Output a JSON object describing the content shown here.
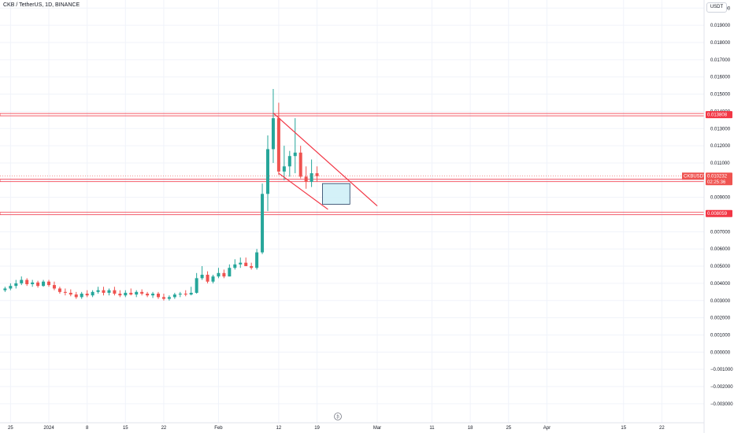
{
  "header": {
    "title": "CKB / TetherUS, 1D, BINANCE",
    "unit_button": "USDT"
  },
  "colors": {
    "up": "#26a69a",
    "down": "#ef5350",
    "drawing_red": "#f23645",
    "box_fill": "#cdeef7",
    "box_border": "#1e3a5f",
    "grid": "#f0f3fa",
    "axis_text": "#131722"
  },
  "chart_data": {
    "type": "candlestick",
    "title": "CKB / TetherUS, 1D, BINANCE",
    "y_axis": {
      "ticks": [
        "0.020000",
        "0.019000",
        "0.018000",
        "0.017000",
        "0.016000",
        "0.015000",
        "0.014000",
        "0.013000",
        "0.012000",
        "0.011000",
        "0.010000",
        "0.009000",
        "0.008000",
        "0.007000",
        "0.006000",
        "0.005000",
        "0.004000",
        "0.003000",
        "0.002000",
        "0.001000",
        "0.000000",
        "−0.001000",
        "−0.002000",
        "−0.003000"
      ],
      "tick_values": [
        0.02,
        0.019,
        0.018,
        0.017,
        0.016,
        0.015,
        0.014,
        0.013,
        0.012,
        0.011,
        0.01,
        0.009,
        0.008,
        0.007,
        0.006,
        0.005,
        0.004,
        0.003,
        0.002,
        0.001,
        0.0,
        -0.001,
        -0.002,
        -0.003
      ],
      "range": [
        -0.003,
        0.0205
      ],
      "grid": true
    },
    "x_axis": {
      "ticks": [
        "25",
        "2024",
        "8",
        "15",
        "22",
        "Feb",
        "12",
        "19",
        "Mar",
        "11",
        "18",
        "25",
        "Apr",
        "15",
        "22"
      ],
      "tick_days": [
        -7,
        0,
        7,
        14,
        21,
        31,
        42,
        49,
        60,
        70,
        77,
        84,
        91,
        105,
        112
      ]
    },
    "candles": [
      {
        "day": -8,
        "o": 0.0036,
        "h": 0.0038,
        "l": 0.0035,
        "c": 0.0037
      },
      {
        "day": -7,
        "o": 0.0037,
        "h": 0.004,
        "l": 0.0036,
        "c": 0.00385
      },
      {
        "day": -6,
        "o": 0.00385,
        "h": 0.0042,
        "l": 0.0037,
        "c": 0.004
      },
      {
        "day": -5,
        "o": 0.004,
        "h": 0.0044,
        "l": 0.0039,
        "c": 0.0042
      },
      {
        "day": -4,
        "o": 0.0042,
        "h": 0.0043,
        "l": 0.00385,
        "c": 0.00395
      },
      {
        "day": -3,
        "o": 0.00395,
        "h": 0.0042,
        "l": 0.0038,
        "c": 0.00405
      },
      {
        "day": -2,
        "o": 0.00405,
        "h": 0.00415,
        "l": 0.00375,
        "c": 0.00385
      },
      {
        "day": -1,
        "o": 0.00385,
        "h": 0.0042,
        "l": 0.0038,
        "c": 0.0041
      },
      {
        "day": 0,
        "o": 0.0041,
        "h": 0.0042,
        "l": 0.0038,
        "c": 0.0039
      },
      {
        "day": 1,
        "o": 0.0039,
        "h": 0.0041,
        "l": 0.0036,
        "c": 0.0037
      },
      {
        "day": 2,
        "o": 0.0037,
        "h": 0.0038,
        "l": 0.0034,
        "c": 0.0035
      },
      {
        "day": 3,
        "o": 0.0035,
        "h": 0.0037,
        "l": 0.0033,
        "c": 0.00345
      },
      {
        "day": 4,
        "o": 0.00345,
        "h": 0.00365,
        "l": 0.00325,
        "c": 0.00335
      },
      {
        "day": 5,
        "o": 0.00335,
        "h": 0.0035,
        "l": 0.0031,
        "c": 0.0032
      },
      {
        "day": 6,
        "o": 0.0032,
        "h": 0.0035,
        "l": 0.0031,
        "c": 0.0034
      },
      {
        "day": 7,
        "o": 0.0034,
        "h": 0.0036,
        "l": 0.0032,
        "c": 0.0033
      },
      {
        "day": 8,
        "o": 0.0033,
        "h": 0.0036,
        "l": 0.0032,
        "c": 0.0035
      },
      {
        "day": 9,
        "o": 0.0035,
        "h": 0.0038,
        "l": 0.0034,
        "c": 0.0036
      },
      {
        "day": 10,
        "o": 0.0036,
        "h": 0.0038,
        "l": 0.0033,
        "c": 0.00345
      },
      {
        "day": 11,
        "o": 0.00345,
        "h": 0.0037,
        "l": 0.0033,
        "c": 0.0036
      },
      {
        "day": 12,
        "o": 0.0036,
        "h": 0.0038,
        "l": 0.0033,
        "c": 0.0034
      },
      {
        "day": 13,
        "o": 0.0034,
        "h": 0.0036,
        "l": 0.0032,
        "c": 0.0033
      },
      {
        "day": 14,
        "o": 0.0033,
        "h": 0.0036,
        "l": 0.0032,
        "c": 0.00345
      },
      {
        "day": 15,
        "o": 0.00345,
        "h": 0.0037,
        "l": 0.0033,
        "c": 0.00335
      },
      {
        "day": 16,
        "o": 0.00335,
        "h": 0.0036,
        "l": 0.0032,
        "c": 0.0035
      },
      {
        "day": 17,
        "o": 0.0035,
        "h": 0.00365,
        "l": 0.0033,
        "c": 0.0034
      },
      {
        "day": 18,
        "o": 0.0034,
        "h": 0.0035,
        "l": 0.0032,
        "c": 0.0033
      },
      {
        "day": 19,
        "o": 0.0033,
        "h": 0.0035,
        "l": 0.00315,
        "c": 0.0034
      },
      {
        "day": 20,
        "o": 0.0034,
        "h": 0.0035,
        "l": 0.0031,
        "c": 0.0032
      },
      {
        "day": 21,
        "o": 0.0032,
        "h": 0.0034,
        "l": 0.003,
        "c": 0.0031
      },
      {
        "day": 22,
        "o": 0.0031,
        "h": 0.0033,
        "l": 0.003,
        "c": 0.0032
      },
      {
        "day": 23,
        "o": 0.0032,
        "h": 0.00345,
        "l": 0.0031,
        "c": 0.00335
      },
      {
        "day": 24,
        "o": 0.00335,
        "h": 0.0035,
        "l": 0.0032,
        "c": 0.0034
      },
      {
        "day": 25,
        "o": 0.0034,
        "h": 0.0036,
        "l": 0.00325,
        "c": 0.00335
      },
      {
        "day": 26,
        "o": 0.00335,
        "h": 0.0038,
        "l": 0.0033,
        "c": 0.00345
      },
      {
        "day": 27,
        "o": 0.00345,
        "h": 0.0046,
        "l": 0.0034,
        "c": 0.0043
      },
      {
        "day": 28,
        "o": 0.0043,
        "h": 0.005,
        "l": 0.0042,
        "c": 0.0045
      },
      {
        "day": 29,
        "o": 0.0045,
        "h": 0.0047,
        "l": 0.004,
        "c": 0.0041
      },
      {
        "day": 30,
        "o": 0.0041,
        "h": 0.0045,
        "l": 0.004,
        "c": 0.0044
      },
      {
        "day": 31,
        "o": 0.0044,
        "h": 0.0049,
        "l": 0.0043,
        "c": 0.0046
      },
      {
        "day": 32,
        "o": 0.0046,
        "h": 0.0048,
        "l": 0.0043,
        "c": 0.0044
      },
      {
        "day": 33,
        "o": 0.0044,
        "h": 0.0051,
        "l": 0.0044,
        "c": 0.0049
      },
      {
        "day": 34,
        "o": 0.0049,
        "h": 0.0054,
        "l": 0.0048,
        "c": 0.0051
      },
      {
        "day": 35,
        "o": 0.0051,
        "h": 0.0055,
        "l": 0.0049,
        "c": 0.0052
      },
      {
        "day": 36,
        "o": 0.0052,
        "h": 0.0055,
        "l": 0.005,
        "c": 0.005
      },
      {
        "day": 37,
        "o": 0.005,
        "h": 0.0052,
        "l": 0.0048,
        "c": 0.0049
      },
      {
        "day": 38,
        "o": 0.0049,
        "h": 0.006,
        "l": 0.0048,
        "c": 0.0058
      },
      {
        "day": 39,
        "o": 0.0058,
        "h": 0.0098,
        "l": 0.0057,
        "c": 0.0092
      },
      {
        "day": 40,
        "o": 0.0092,
        "h": 0.0126,
        "l": 0.0082,
        "c": 0.0118
      },
      {
        "day": 41,
        "o": 0.0118,
        "h": 0.0153,
        "l": 0.011,
        "c": 0.0136
      },
      {
        "day": 42,
        "o": 0.0136,
        "h": 0.0145,
        "l": 0.0103,
        "c": 0.0105
      },
      {
        "day": 43,
        "o": 0.0105,
        "h": 0.012,
        "l": 0.01,
        "c": 0.0108
      },
      {
        "day": 44,
        "o": 0.0108,
        "h": 0.0117,
        "l": 0.0102,
        "c": 0.0114
      },
      {
        "day": 45,
        "o": 0.0114,
        "h": 0.0136,
        "l": 0.0104,
        "c": 0.0116
      },
      {
        "day": 46,
        "o": 0.0116,
        "h": 0.012,
        "l": 0.0101,
        "c": 0.0102
      },
      {
        "day": 47,
        "o": 0.0102,
        "h": 0.0108,
        "l": 0.0095,
        "c": 0.0099
      },
      {
        "day": 48,
        "o": 0.0099,
        "h": 0.0112,
        "l": 0.0096,
        "c": 0.0104
      },
      {
        "day": 49,
        "o": 0.0104,
        "h": 0.0108,
        "l": 0.0099,
        "c": 0.01023
      }
    ],
    "horizontal_lines": [
      {
        "price": 0.013808,
        "label": "0.013808"
      },
      {
        "price": 0.009982,
        "label": "0.009982"
      },
      {
        "price": 0.008059,
        "label": "0.008059"
      }
    ],
    "trendlines": [
      {
        "from": {
          "day": 41,
          "price": 0.0139
        },
        "to": {
          "day": 60,
          "price": 0.0085
        }
      },
      {
        "from": {
          "day": 42,
          "price": 0.0104
        },
        "to": {
          "day": 51,
          "price": 0.0083
        }
      }
    ],
    "box": {
      "x0_day": 50,
      "x1_day": 55,
      "y0": 0.0098,
      "y1": 0.0086
    },
    "current_price": {
      "label": "CKBUSDT",
      "value": "0.010232",
      "countdown": "02:25:36",
      "price": 0.010232
    }
  }
}
